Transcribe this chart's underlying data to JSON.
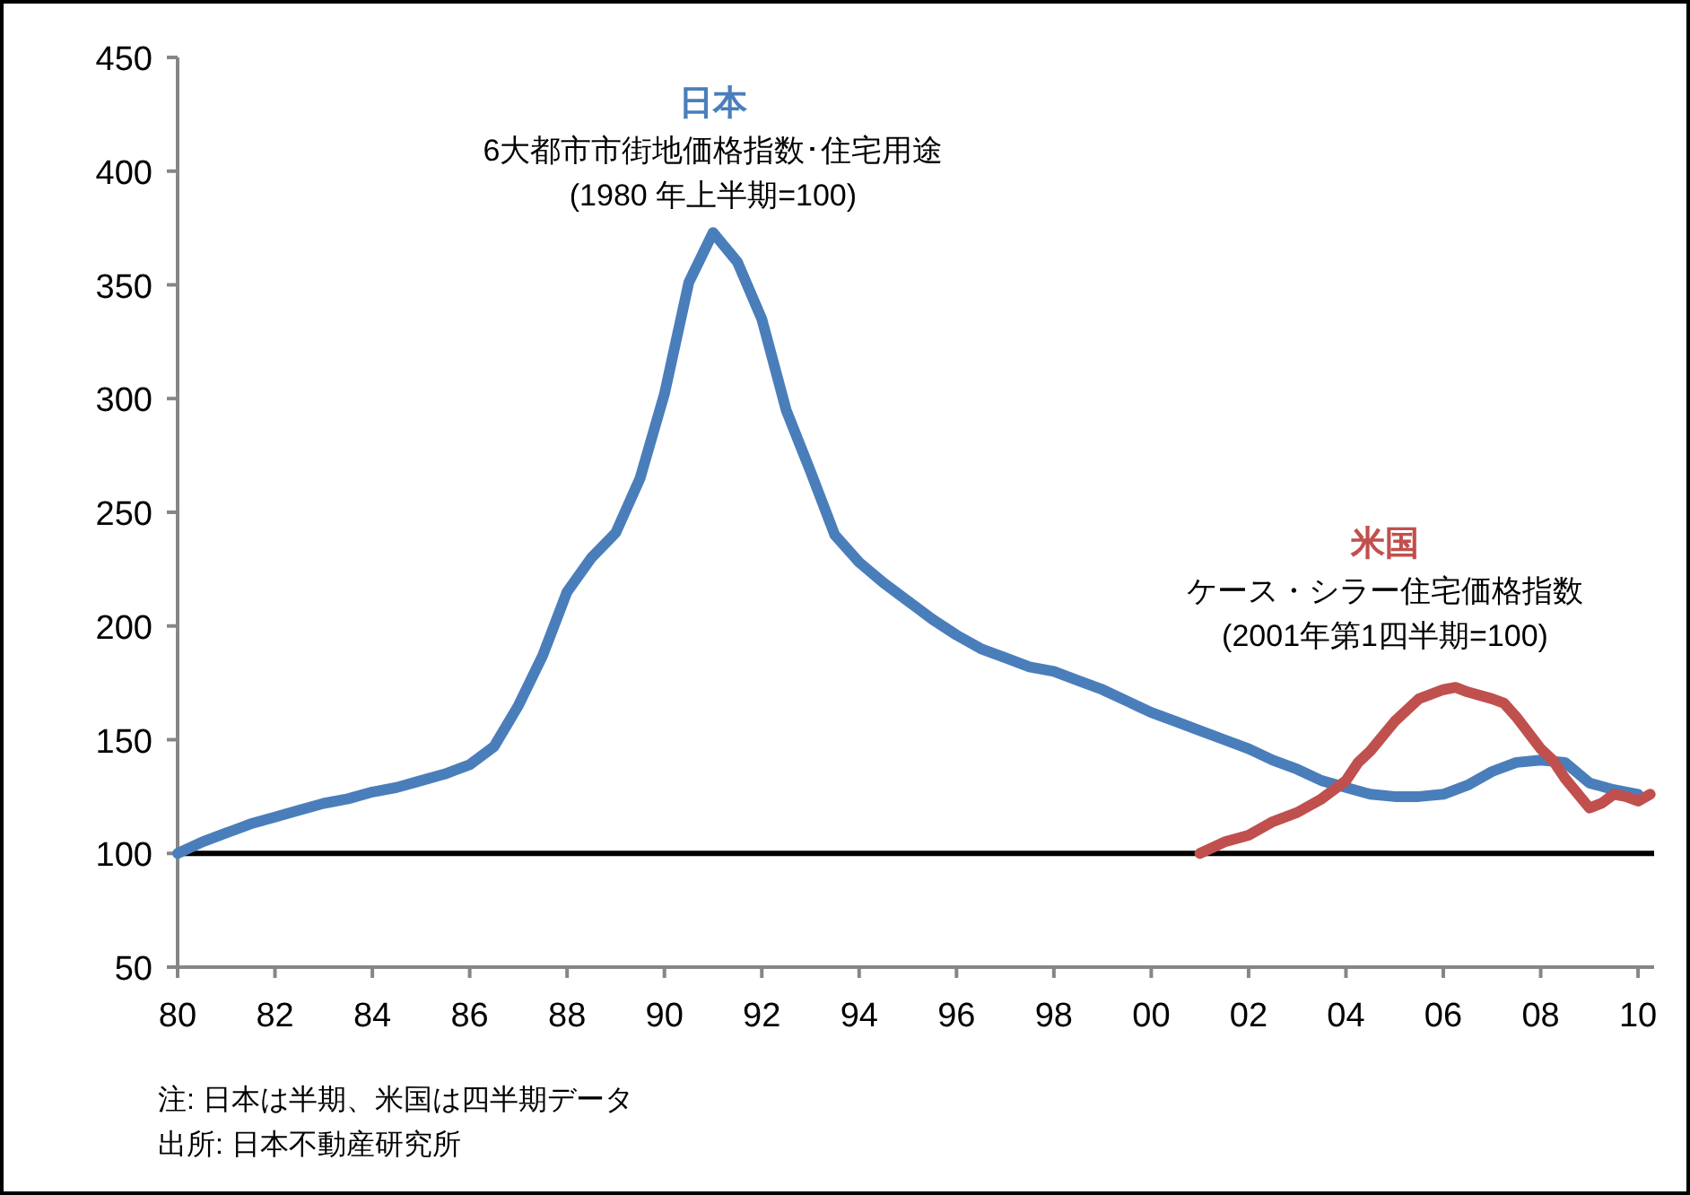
{
  "chart_data": {
    "type": "line",
    "xlim": [
      1980,
      2010.33
    ],
    "xticks": [
      {
        "value": 1980,
        "label": "80"
      },
      {
        "value": 1982,
        "label": "82"
      },
      {
        "value": 1984,
        "label": "84"
      },
      {
        "value": 1986,
        "label": "86"
      },
      {
        "value": 1988,
        "label": "88"
      },
      {
        "value": 1990,
        "label": "90"
      },
      {
        "value": 1992,
        "label": "92"
      },
      {
        "value": 1994,
        "label": "94"
      },
      {
        "value": 1996,
        "label": "96"
      },
      {
        "value": 1998,
        "label": "98"
      },
      {
        "value": 2000,
        "label": "00"
      },
      {
        "value": 2002,
        "label": "02"
      },
      {
        "value": 2004,
        "label": "04"
      },
      {
        "value": 2006,
        "label": "06"
      },
      {
        "value": 2008,
        "label": "08"
      },
      {
        "value": 2010,
        "label": "10"
      }
    ],
    "ylim": [
      50,
      450
    ],
    "yticks": [
      50,
      100,
      150,
      200,
      250,
      300,
      350,
      400,
      450
    ],
    "grid": false,
    "marker": "none",
    "line_style": "solid",
    "ref_lines": [
      {
        "axis": "y",
        "value": 100,
        "color": "#000000"
      }
    ],
    "series": [
      {
        "name": "日本",
        "color": "#4a7ebb",
        "x": [
          1980,
          1980.5,
          1981,
          1981.5,
          1982,
          1982.5,
          1983,
          1983.5,
          1984,
          1984.5,
          1985,
          1985.5,
          1986,
          1986.5,
          1987,
          1987.5,
          1988,
          1988.5,
          1989,
          1989.5,
          1990,
          1990.5,
          1991,
          1991.5,
          1992,
          1992.5,
          1993,
          1993.5,
          1994,
          1994.5,
          1995,
          1995.5,
          1996,
          1996.5,
          1997,
          1997.5,
          1998,
          1998.5,
          1999,
          1999.5,
          2000,
          2000.5,
          2001,
          2001.5,
          2002,
          2002.5,
          2003,
          2003.5,
          2004,
          2004.5,
          2005,
          2005.5,
          2006,
          2006.5,
          2007,
          2007.5,
          2008,
          2008.5,
          2009,
          2009.5,
          2010
        ],
        "values": [
          100,
          105,
          109,
          113,
          116,
          119,
          122,
          124,
          127,
          129,
          132,
          135,
          139,
          147,
          165,
          187,
          215,
          230,
          241,
          265,
          302,
          351,
          373,
          360,
          335,
          295,
          268,
          240,
          228,
          219,
          211,
          203,
          196,
          190,
          186,
          182,
          180,
          176,
          172,
          167,
          162,
          158,
          154,
          150,
          146,
          141,
          137,
          132,
          129,
          126,
          125,
          125,
          126,
          130,
          136,
          140,
          141,
          140,
          131,
          128,
          126
        ]
      },
      {
        "name": "米国",
        "color": "#c0504d",
        "x": [
          2001,
          2001.5,
          2002,
          2002.5,
          2003,
          2003.5,
          2004,
          2004.25,
          2004.5,
          2005,
          2005.5,
          2006,
          2006.25,
          2006.5,
          2007,
          2007.25,
          2007.5,
          2008,
          2008.25,
          2008.5,
          2009,
          2009.25,
          2009.5,
          2009.75,
          2010,
          2010.25
        ],
        "values": [
          100,
          105,
          108,
          114,
          118,
          124,
          132,
          140,
          145,
          158,
          168,
          172,
          173,
          171,
          168,
          166,
          160,
          146,
          141,
          133,
          120,
          122,
          126,
          125,
          123,
          126
        ]
      }
    ],
    "annotations": [
      "6大都市市街地価格指数･住宅用途",
      "(1980 年上半期=100)",
      "ケース・シラー住宅価格指数",
      "(2001年第1四半期=100)",
      "注: 日本は半期、米国は四半期データ",
      "出所: 日本不動産研究所"
    ]
  }
}
